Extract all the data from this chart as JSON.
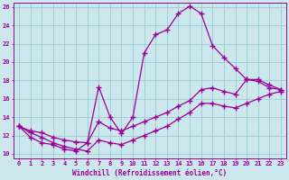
{
  "xlabel": "Windchill (Refroidissement éolien,°C)",
  "background_color": "#cce8ec",
  "grid_color": "#99ccd4",
  "line_color": "#990099",
  "xlim": [
    -0.5,
    23.5
  ],
  "ylim": [
    9.5,
    26.5
  ],
  "yticks": [
    10,
    12,
    14,
    16,
    18,
    20,
    22,
    24,
    26
  ],
  "xticks": [
    0,
    1,
    2,
    3,
    4,
    5,
    6,
    7,
    8,
    9,
    10,
    11,
    12,
    13,
    14,
    15,
    16,
    17,
    18,
    19,
    20,
    21,
    22,
    23
  ],
  "line1_x": [
    0,
    1,
    2,
    3,
    4,
    5,
    6,
    7,
    8,
    9,
    10,
    11,
    12,
    13,
    14,
    15,
    16,
    17,
    18,
    19,
    20,
    21,
    22,
    23
  ],
  "line1_y": [
    13.0,
    11.8,
    11.2,
    11.0,
    10.5,
    10.3,
    11.2,
    17.3,
    14.0,
    12.2,
    14.0,
    21.0,
    23.0,
    23.5,
    25.3,
    26.1,
    25.3,
    21.8,
    20.5,
    19.3,
    18.1,
    17.9,
    17.2,
    17.0
  ],
  "line2_x": [
    0,
    1,
    2,
    3,
    4,
    5,
    6,
    7,
    8,
    9,
    10,
    11,
    12,
    13,
    14,
    15,
    16,
    17,
    18,
    19,
    20,
    21,
    22,
    23
  ],
  "line2_y": [
    13.0,
    12.5,
    12.3,
    11.8,
    11.5,
    11.3,
    11.2,
    13.5,
    12.8,
    12.5,
    13.0,
    13.5,
    14.0,
    14.5,
    15.2,
    15.8,
    17.0,
    17.2,
    16.8,
    16.5,
    18.1,
    18.1,
    17.5,
    17.0
  ],
  "line3_x": [
    0,
    1,
    2,
    3,
    4,
    5,
    6,
    7,
    8,
    9,
    10,
    11,
    12,
    13,
    14,
    15,
    16,
    17,
    18,
    19,
    20,
    21,
    22,
    23
  ],
  "line3_y": [
    13.0,
    12.3,
    11.8,
    11.2,
    10.8,
    10.5,
    10.3,
    11.5,
    11.2,
    11.0,
    11.5,
    12.0,
    12.5,
    13.0,
    13.8,
    14.5,
    15.5,
    15.5,
    15.2,
    15.0,
    15.5,
    16.0,
    16.5,
    16.8
  ]
}
